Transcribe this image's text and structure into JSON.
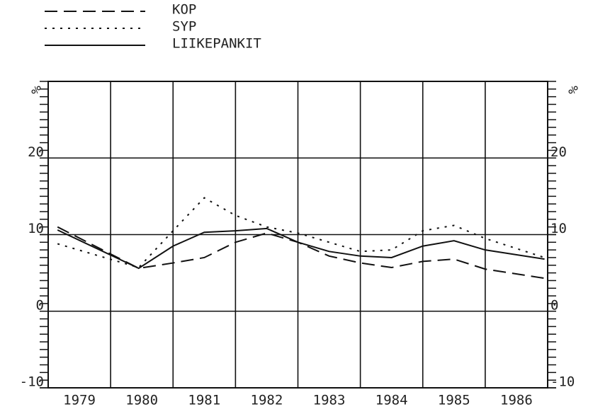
{
  "chart_data": {
    "type": "line",
    "y_label": "%",
    "categories": [
      "1979",
      "1980",
      "1981",
      "1982",
      "1983",
      "1984",
      "1985",
      "1986"
    ],
    "x": [
      1979.15,
      1980.45,
      1981.0,
      1981.5,
      1982.0,
      1982.5,
      1983.0,
      1983.5,
      1984.0,
      1984.5,
      1985.0,
      1985.5,
      1986.0,
      1986.95
    ],
    "xlim": [
      1979,
      1987
    ],
    "xticks": [
      1979,
      1980,
      1981,
      1982,
      1983,
      1984,
      1985,
      1986,
      1987
    ],
    "ylim": [
      -10,
      30
    ],
    "yticks": [
      -10,
      0,
      10,
      20
    ],
    "yticks_minor": [
      -10,
      -9,
      -8,
      -7,
      -6,
      -5,
      -4,
      -3,
      -2,
      -1,
      0,
      1,
      2,
      3,
      4,
      5,
      6,
      7,
      8,
      9,
      10,
      11,
      12,
      13,
      14,
      15,
      16,
      17,
      18,
      19,
      20,
      21,
      22,
      23,
      24,
      25,
      26,
      27,
      28,
      29,
      30
    ],
    "grid": true,
    "legend": "top-left",
    "series": [
      {
        "name": "KOP",
        "color": "#111",
        "dash": "dashed",
        "values": [
          11,
          5.6,
          6.3,
          7.0,
          9.0,
          10.2,
          9.0,
          7.2,
          6.3,
          5.7,
          6.5,
          6.8,
          5.5,
          4.3
        ]
      },
      {
        "name": "SYP",
        "color": "#111",
        "dash": "dotted",
        "values": [
          8.8,
          5.7,
          10.5,
          14.8,
          12.5,
          11.0,
          10.2,
          9.0,
          7.8,
          8.0,
          10.5,
          11.2,
          9.5,
          7.0
        ]
      },
      {
        "name": "LIIKEPANKIT",
        "color": "#111",
        "dash": "solid",
        "values": [
          10.6,
          5.6,
          8.5,
          10.3,
          10.5,
          10.8,
          9.0,
          7.8,
          7.2,
          7.0,
          8.5,
          9.2,
          8.0,
          6.8
        ]
      }
    ]
  }
}
